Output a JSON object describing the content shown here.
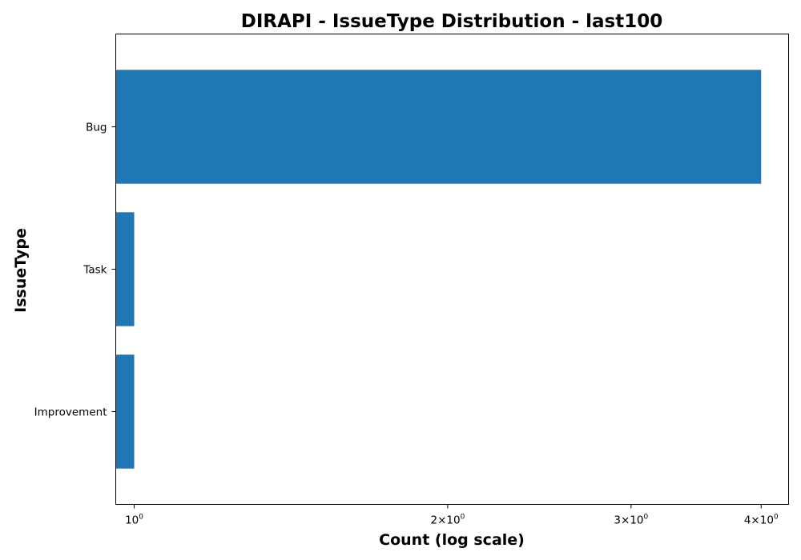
{
  "chart_data": {
    "type": "bar",
    "orientation": "horizontal",
    "title": "DIRAPI - IssueType Distribution - last100",
    "xlabel": "Count (log scale)",
    "ylabel": "IssueType",
    "x_scale": "log",
    "xlim": [
      0.96,
      4.25
    ],
    "x_ticks": [
      {
        "value": 1,
        "base": "10",
        "exp": "0",
        "prefix": ""
      },
      {
        "value": 2,
        "base": "10",
        "exp": "0",
        "prefix": "2×"
      },
      {
        "value": 3,
        "base": "10",
        "exp": "0",
        "prefix": "3×"
      },
      {
        "value": 4,
        "base": "10",
        "exp": "0",
        "prefix": "4×"
      }
    ],
    "categories": [
      "Bug",
      "Task",
      "Improvement"
    ],
    "values": [
      4,
      1,
      1
    ],
    "bar_color": "#1f77b4",
    "grid": false,
    "legend": "none"
  }
}
